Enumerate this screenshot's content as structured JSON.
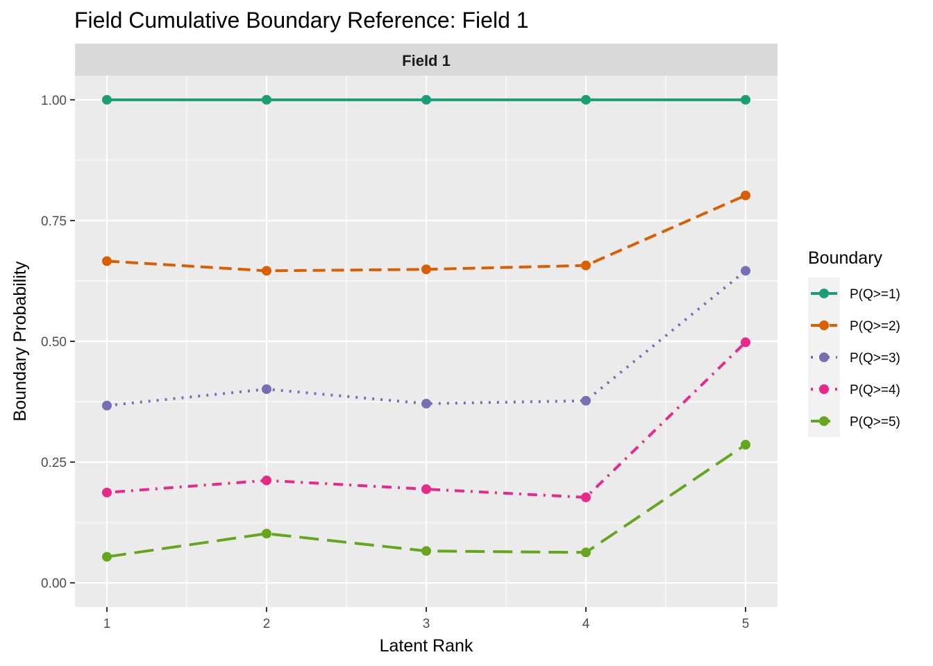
{
  "chart_data": {
    "type": "line",
    "title": "Field Cumulative Boundary Reference: Field 1",
    "facet_label": "Field 1",
    "xlabel": "Latent Rank",
    "ylabel": "Boundary Probability",
    "x": [
      1,
      2,
      3,
      4,
      5
    ],
    "x_tick_labels": [
      "1",
      "2",
      "3",
      "4",
      "5"
    ],
    "y_ticks": [
      0,
      0.25,
      0.5,
      0.75,
      1
    ],
    "y_tick_labels": [
      "0.00",
      "0.25",
      "0.50",
      "0.75",
      "1.00"
    ],
    "xlim": [
      0.8,
      5.2
    ],
    "ylim": [
      -0.05,
      1.05
    ],
    "grid": true,
    "legend_title": "Boundary",
    "legend_position": "right",
    "series": [
      {
        "name": "P(Q>=1)",
        "values": [
          1.0,
          1.0,
          1.0,
          1.0,
          1.0
        ],
        "color": "#1B9E77",
        "dash": "solid"
      },
      {
        "name": "P(Q>=2)",
        "values": [
          0.666,
          0.646,
          0.649,
          0.657,
          0.802
        ],
        "color": "#D95F02",
        "dash": "dashed"
      },
      {
        "name": "P(Q>=3)",
        "values": [
          0.367,
          0.401,
          0.371,
          0.377,
          0.646
        ],
        "color": "#7570B3",
        "dash": "dotted"
      },
      {
        "name": "P(Q>=4)",
        "values": [
          0.187,
          0.212,
          0.194,
          0.177,
          0.498
        ],
        "color": "#E7298A",
        "dash": "dotdash"
      },
      {
        "name": "P(Q>=5)",
        "values": [
          0.054,
          0.102,
          0.066,
          0.063,
          0.286
        ],
        "color": "#66A61E",
        "dash": "longdash"
      }
    ]
  }
}
